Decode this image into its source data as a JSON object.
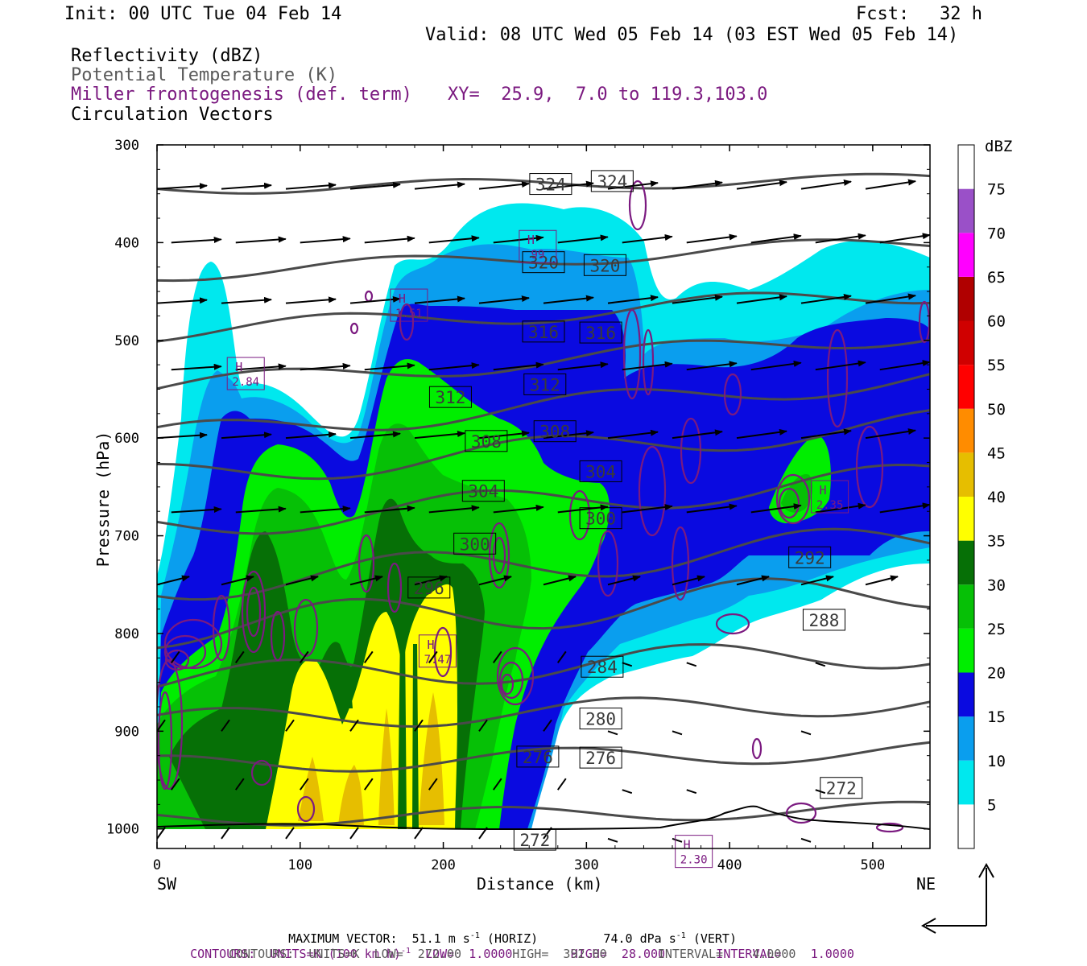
{
  "header": {
    "init": "Init: 00 UTC Tue 04 Feb 14",
    "fcst_label": "Fcst:",
    "fcst_value": "32 h",
    "valid": "Valid: 08 UTC Wed 05 Feb 14 (03 EST Wed 05 Feb 14)"
  },
  "legend_lines": {
    "reflectivity": "Reflectivity (dBZ)",
    "theta": "Potential Temperature (K)",
    "frontogenesis": "Miller frontogenesis (def. term)",
    "xy": "XY=  25.9,  7.0 to 119.3,103.0",
    "vectors": "Circulation Vectors"
  },
  "colors": {
    "dbz_bins": [
      "#ffffff",
      "#00e8ee",
      "#0a9eee",
      "#0a0ae0",
      "#00ee00",
      "#06c006",
      "#067006",
      "#ffff00",
      "#e6be00",
      "#ff8c00",
      "#ff0000",
      "#d00000",
      "#b00000",
      "#ff00ff",
      "#9a50c8"
    ],
    "isentrope": "#4a4a4a",
    "frontogenesis": "#7b1a80",
    "vector": "#000000"
  },
  "chart_data": {
    "type": "contour-cross-section",
    "xlabel": "Distance (km)",
    "ylabel": "Pressure (hPa)",
    "x_ticks": [
      0,
      100,
      200,
      300,
      400,
      500
    ],
    "y_ticks": [
      300,
      400,
      500,
      600,
      700,
      800,
      900,
      1000
    ],
    "xlim": [
      0,
      540
    ],
    "ylim": [
      1020,
      300
    ],
    "x_end_labels": {
      "left": "SW",
      "right": "NE"
    },
    "colorbar": {
      "title": "dBZ",
      "levels": [
        5,
        10,
        15,
        20,
        25,
        30,
        35,
        40,
        45,
        50,
        55,
        60,
        65,
        70,
        75
      ]
    },
    "isentrope_labels": [
      {
        "value": "324",
        "x": 275,
        "p": 340
      },
      {
        "value": "324",
        "x": 318,
        "p": 337
      },
      {
        "value": "320",
        "x": 270,
        "p": 420
      },
      {
        "value": "320",
        "x": 313,
        "p": 423
      },
      {
        "value": "316",
        "x": 270,
        "p": 491
      },
      {
        "value": "316",
        "x": 310,
        "p": 492
      },
      {
        "value": "312",
        "x": 205,
        "p": 558
      },
      {
        "value": "312",
        "x": 271,
        "p": 545
      },
      {
        "value": "308",
        "x": 230,
        "p": 603
      },
      {
        "value": "308",
        "x": 278,
        "p": 593
      },
      {
        "value": "304",
        "x": 228,
        "p": 654
      },
      {
        "value": "304",
        "x": 310,
        "p": 634
      },
      {
        "value": "300",
        "x": 222,
        "p": 708
      },
      {
        "value": "300",
        "x": 310,
        "p": 682
      },
      {
        "value": "296",
        "x": 190,
        "p": 753
      },
      {
        "value": "292",
        "x": 456,
        "p": 722
      },
      {
        "value": "288",
        "x": 466,
        "p": 786
      },
      {
        "value": "284",
        "x": 311,
        "p": 834
      },
      {
        "value": "280",
        "x": 310,
        "p": 887
      },
      {
        "value": "276",
        "x": 266,
        "p": 926
      },
      {
        "value": "276",
        "x": 310,
        "p": 927
      },
      {
        "value": "272",
        "x": 264,
        "p": 1011
      },
      {
        "value": "272",
        "x": 478,
        "p": 958
      }
    ],
    "highs": [
      {
        "label": "H",
        "value": "1.51",
        "x": 176,
        "p": 464
      },
      {
        "label": "H",
        "value": "2.84",
        "x": 62,
        "p": 534
      },
      {
        "label": "H",
        "value": "99",
        "x": 266,
        "p": 404
      },
      {
        "label": "H",
        "value": "2.35",
        "x": 470,
        "p": 660
      },
      {
        "label": "H",
        "value": "7.47",
        "x": 196,
        "p": 818
      },
      {
        "label": "H",
        "value": "2.30",
        "x": 375,
        "p": 1023
      }
    ]
  },
  "footer": {
    "max_vector": "MAXIMUM VECTOR:  51.1 m s",
    "max_vector_sup": "-1",
    "max_vector_horiz": "(HORIZ)",
    "max_vector_vert": "74.0 dPa s",
    "max_vector_vert_sup": "-1",
    "max_vector_vert_tail": "(VERT)",
    "contours1_a": "CONTOURS:  UNITS=K (100 km h)",
    "contours1_sup": "-1",
    "contours1_b": "  LOW=  1.0000        HIGH=  28.000       INTERVAL=    1.0000",
    "contours2": "CONTOURS:  UNITS=K  LOW=  272.00       HIGH=  392.00       INTERVAL=    4.0000"
  }
}
